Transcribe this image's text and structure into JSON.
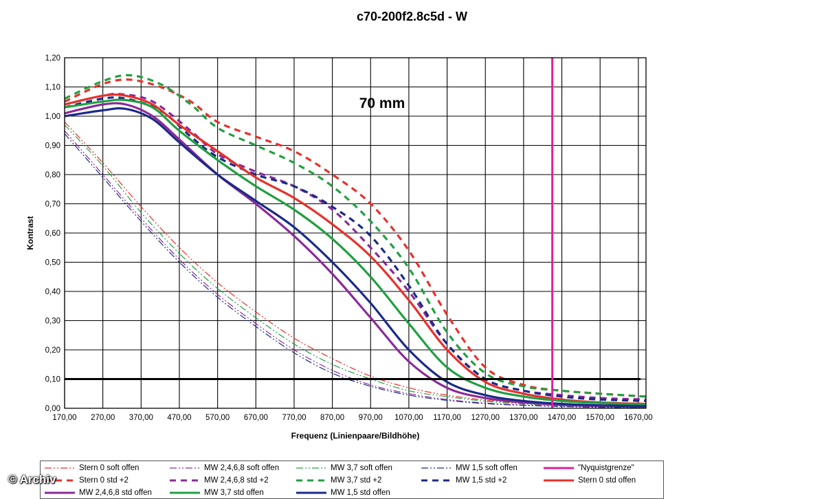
{
  "chart_data": {
    "type": "line",
    "title": "c70-200f2.8c5d - W",
    "annotation": "70 mm",
    "xlabel": "Frequenz (Linienpaare/Bildhöhe)",
    "ylabel": "Kontrast",
    "xlim": [
      170,
      1690
    ],
    "ylim": [
      0,
      1.2
    ],
    "xticks": [
      "170,00",
      "270,00",
      "370,00",
      "470,00",
      "570,00",
      "670,00",
      "770,00",
      "870,00",
      "970,00",
      "1070,00",
      "1170,00",
      "1270,00",
      "1370,00",
      "1470,00",
      "1570,00",
      "1670,00"
    ],
    "yticks": [
      "0,00",
      "0,10",
      "0,20",
      "0,30",
      "0,40",
      "0,50",
      "0,60",
      "0,70",
      "0,80",
      "0,90",
      "1,00",
      "1,10",
      "1,20"
    ],
    "grid": true,
    "reference_line_y": 0.1,
    "legend_position": "bottom",
    "series": [
      {
        "name": "Stern 0 soft offen",
        "color": "#e8302a",
        "style": "dashdotdot",
        "width": 1.2,
        "x": [
          170,
          270,
          370,
          470,
          570,
          670,
          770,
          870,
          970,
          1070,
          1170,
          1270,
          1370,
          1470,
          1570,
          1690
        ],
        "y": [
          0.98,
          0.84,
          0.69,
          0.55,
          0.43,
          0.33,
          0.24,
          0.17,
          0.11,
          0.07,
          0.045,
          0.028,
          0.017,
          0.01,
          0.006,
          0.004
        ]
      },
      {
        "name": "MW 2,4,6,8 soft offen",
        "color": "#8a2a9a",
        "style": "dashdotdot",
        "width": 1.2,
        "x": [
          170,
          270,
          370,
          470,
          570,
          670,
          770,
          870,
          970,
          1070,
          1170,
          1270,
          1370,
          1470,
          1570,
          1690
        ],
        "y": [
          0.95,
          0.8,
          0.65,
          0.51,
          0.39,
          0.29,
          0.2,
          0.13,
          0.08,
          0.05,
          0.03,
          0.018,
          0.011,
          0.007,
          0.004,
          0.002
        ]
      },
      {
        "name": "MW 3,7 soft offen",
        "color": "#20a040",
        "style": "dashdotdot",
        "width": 1.2,
        "x": [
          170,
          270,
          370,
          470,
          570,
          670,
          770,
          870,
          970,
          1070,
          1170,
          1270,
          1370,
          1470,
          1570,
          1690
        ],
        "y": [
          0.97,
          0.83,
          0.67,
          0.53,
          0.41,
          0.31,
          0.22,
          0.15,
          0.1,
          0.06,
          0.04,
          0.024,
          0.015,
          0.009,
          0.005,
          0.003
        ]
      },
      {
        "name": "MW 1,5 soft offen",
        "color": "#1a2a88",
        "style": "dashdotdot",
        "width": 1.2,
        "x": [
          170,
          270,
          370,
          470,
          570,
          670,
          770,
          870,
          970,
          1070,
          1170,
          1270,
          1370,
          1470,
          1570,
          1690
        ],
        "y": [
          0.94,
          0.79,
          0.64,
          0.5,
          0.38,
          0.28,
          0.19,
          0.12,
          0.075,
          0.045,
          0.027,
          0.016,
          0.01,
          0.006,
          0.003,
          0.002
        ]
      },
      {
        "name": "\"Nyquistgrenze\"",
        "color": "#e0209a",
        "style": "vertical",
        "width": 3,
        "x": [
          1445,
          1445
        ],
        "y": [
          0,
          1.2
        ]
      },
      {
        "name": "Stern 0 std +2",
        "color": "#e8302a",
        "style": "dashed",
        "width": 3.2,
        "x": [
          170,
          270,
          340,
          420,
          500,
          570,
          670,
          770,
          870,
          970,
          1070,
          1170,
          1270,
          1370,
          1470,
          1570,
          1690
        ],
        "y": [
          1.05,
          1.11,
          1.125,
          1.1,
          1.05,
          0.98,
          0.93,
          0.88,
          0.8,
          0.7,
          0.54,
          0.32,
          0.14,
          0.08,
          0.06,
          0.05,
          0.04
        ]
      },
      {
        "name": "MW 2,4,6,8 std +2",
        "color": "#8a2a9a",
        "style": "dashed",
        "width": 3.2,
        "x": [
          170,
          270,
          320,
          400,
          500,
          570,
          670,
          770,
          870,
          970,
          1070,
          1170,
          1270,
          1370,
          1470,
          1570,
          1690
        ],
        "y": [
          1.04,
          1.07,
          1.075,
          1.05,
          0.95,
          0.87,
          0.81,
          0.76,
          0.68,
          0.55,
          0.4,
          0.22,
          0.1,
          0.06,
          0.045,
          0.035,
          0.03
        ]
      },
      {
        "name": "MW 3,7 std +2",
        "color": "#20a040",
        "style": "dashed",
        "width": 3.2,
        "x": [
          170,
          270,
          340,
          420,
          500,
          570,
          670,
          770,
          870,
          970,
          1070,
          1170,
          1270,
          1370,
          1470,
          1570,
          1690
        ],
        "y": [
          1.06,
          1.12,
          1.14,
          1.11,
          1.04,
          0.96,
          0.9,
          0.84,
          0.76,
          0.64,
          0.48,
          0.26,
          0.12,
          0.075,
          0.06,
          0.05,
          0.04
        ]
      },
      {
        "name": "MW 1,5 std +2",
        "color": "#1a2a88",
        "style": "dashed",
        "width": 3.2,
        "x": [
          170,
          270,
          330,
          420,
          500,
          570,
          670,
          770,
          870,
          970,
          1070,
          1170,
          1270,
          1370,
          1470,
          1570,
          1690
        ],
        "y": [
          1.03,
          1.06,
          1.06,
          1.02,
          0.93,
          0.86,
          0.8,
          0.76,
          0.69,
          0.59,
          0.42,
          0.22,
          0.1,
          0.06,
          0.04,
          0.03,
          0.025
        ]
      },
      {
        "name": "Stern 0 std offen",
        "color": "#e8302a",
        "style": "solid",
        "width": 3.2,
        "x": [
          170,
          270,
          330,
          400,
          470,
          570,
          670,
          770,
          870,
          970,
          1070,
          1170,
          1270,
          1370,
          1470,
          1570,
          1690
        ],
        "y": [
          1.04,
          1.07,
          1.07,
          1.04,
          0.97,
          0.88,
          0.79,
          0.72,
          0.63,
          0.52,
          0.37,
          0.2,
          0.09,
          0.05,
          0.03,
          0.02,
          0.015
        ]
      },
      {
        "name": "MW 2,4,6,8 std offen",
        "color": "#8a2a9a",
        "style": "solid",
        "width": 3.2,
        "x": [
          170,
          270,
          330,
          400,
          470,
          570,
          670,
          770,
          870,
          970,
          1070,
          1170,
          1270,
          1370,
          1470,
          1570,
          1690
        ],
        "y": [
          1.01,
          1.04,
          1.04,
          1.0,
          0.92,
          0.8,
          0.7,
          0.59,
          0.46,
          0.31,
          0.16,
          0.07,
          0.035,
          0.02,
          0.012,
          0.008,
          0.006
        ]
      },
      {
        "name": "MW 3,7 std offen",
        "color": "#20a040",
        "style": "solid",
        "width": 3.2,
        "x": [
          170,
          270,
          330,
          400,
          470,
          570,
          670,
          770,
          870,
          970,
          1070,
          1170,
          1270,
          1370,
          1470,
          1570,
          1690
        ],
        "y": [
          1.03,
          1.05,
          1.055,
          1.03,
          0.95,
          0.85,
          0.76,
          0.68,
          0.58,
          0.45,
          0.29,
          0.14,
          0.07,
          0.04,
          0.025,
          0.018,
          0.012
        ]
      },
      {
        "name": "MW 1,5 std offen",
        "color": "#1a2a88",
        "style": "solid",
        "width": 3.2,
        "x": [
          170,
          270,
          330,
          400,
          470,
          570,
          670,
          770,
          870,
          970,
          1070,
          1170,
          1270,
          1370,
          1470,
          1570,
          1690
        ],
        "y": [
          1.0,
          1.02,
          1.025,
          0.99,
          0.91,
          0.8,
          0.71,
          0.62,
          0.5,
          0.36,
          0.2,
          0.09,
          0.045,
          0.025,
          0.015,
          0.01,
          0.007
        ]
      }
    ]
  },
  "watermark": "© Archiv"
}
